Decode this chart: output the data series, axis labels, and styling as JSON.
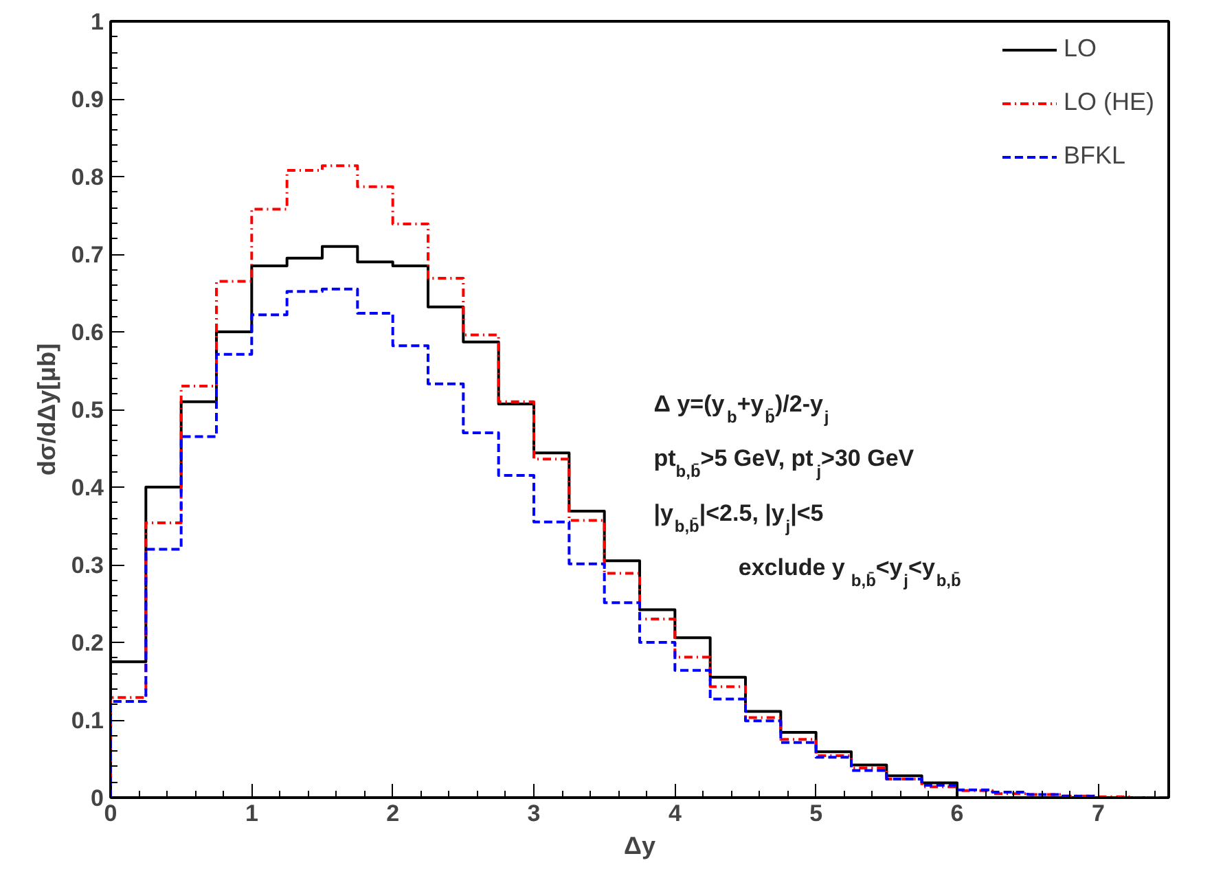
{
  "chart_data": {
    "type": "histogram",
    "xlabel": "Δy",
    "ylabel": "dσ/dΔy[μb]",
    "bins": [
      0,
      0.25,
      0.5,
      0.75,
      1,
      1.25,
      1.5,
      1.75,
      2,
      2.25,
      2.5,
      2.75,
      3,
      3.25,
      3.5,
      3.75,
      4,
      4.25,
      4.5,
      4.75,
      5,
      5.25,
      5.5,
      5.75,
      6,
      6.25,
      6.5,
      6.75,
      7,
      7.25,
      7.5
    ],
    "series": [
      {
        "name": "LO",
        "color": "#000000",
        "line_style": "solid",
        "values": [
          0.175,
          0.4,
          0.51,
          0.6,
          0.685,
          0.695,
          0.71,
          0.69,
          0.685,
          0.632,
          0.587,
          0.507,
          0.444,
          0.369,
          0.305,
          0.242,
          0.206,
          0.155,
          0.111,
          0.084,
          0.059,
          0.042,
          0.028,
          0.019,
          0,
          0,
          0,
          0,
          0,
          0
        ]
      },
      {
        "name": "LO (HE)",
        "color": "#ff0000",
        "line_style": "dotted",
        "values": [
          0.129,
          0.354,
          0.53,
          0.665,
          0.758,
          0.808,
          0.814,
          0.787,
          0.739,
          0.669,
          0.596,
          0.51,
          0.436,
          0.357,
          0.289,
          0.23,
          0.181,
          0.143,
          0.103,
          0.075,
          0.054,
          0.038,
          0.024,
          0.014,
          0.009,
          0.005,
          0.004,
          0.002,
          0.001,
          0
        ]
      },
      {
        "name": "BFKL",
        "color": "#0000ff",
        "line_style": "dashed",
        "values": [
          0.124,
          0.32,
          0.465,
          0.571,
          0.622,
          0.652,
          0.655,
          0.624,
          0.582,
          0.533,
          0.47,
          0.415,
          0.355,
          0.301,
          0.251,
          0.2,
          0.164,
          0.127,
          0.099,
          0.071,
          0.052,
          0.035,
          0.024,
          0.016,
          0.01,
          0.007,
          0.004,
          0.002,
          0,
          0
        ]
      }
    ],
    "xlim": [
      0,
      7.5
    ],
    "ylim": [
      0,
      1
    ],
    "xticks": [
      0,
      1,
      2,
      3,
      4,
      5,
      6,
      7
    ],
    "yticks": [
      0,
      0.1,
      0.2,
      0.3,
      0.4,
      0.5,
      0.6,
      0.7,
      0.8,
      0.9,
      1
    ],
    "annotations": [
      "Δ y=(y$_{b}$+y$_{b̄}$)/2-y$_{j}$",
      "pt$_{b,b̄}$>5 GeV, pt$_{j}$>30 GeV",
      "|y$_{b,b̄}$|<2.5, |y$_{j}$|<5",
      "exclude y$_{b,b̄}$<y$_{j}$<y$_{b,b̄}$"
    ],
    "legend": "top right",
    "grid": false
  }
}
